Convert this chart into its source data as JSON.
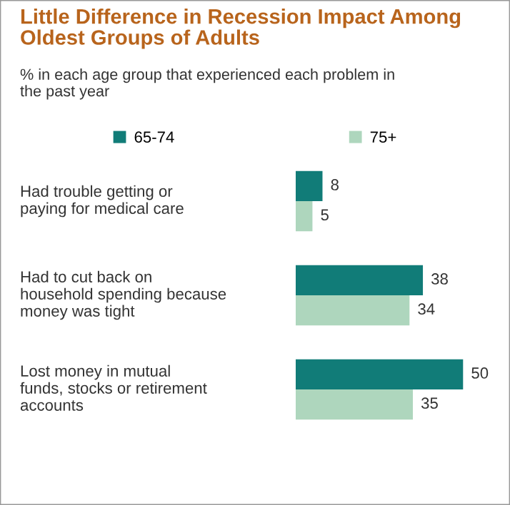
{
  "chart_data": {
    "type": "bar",
    "orientation": "horizontal",
    "title": "Little Difference in Recession Impact Among\nOldest Groups of Adults",
    "subtitle": "% in each age group that experienced each problem in\nthe past year",
    "categories": [
      "Had trouble getting or\npaying for medical care",
      "Had to cut back on\nhousehold spending because\nmoney was tight",
      "Lost money in mutual\nfunds, stocks or retirement\naccounts"
    ],
    "series": [
      {
        "name": "65-74",
        "color": "#117c78",
        "values": [
          8,
          38,
          50
        ]
      },
      {
        "name": "75+",
        "color": "#aed6bd",
        "values": [
          5,
          34,
          35
        ]
      }
    ],
    "data_labels": true,
    "legend": "top"
  }
}
